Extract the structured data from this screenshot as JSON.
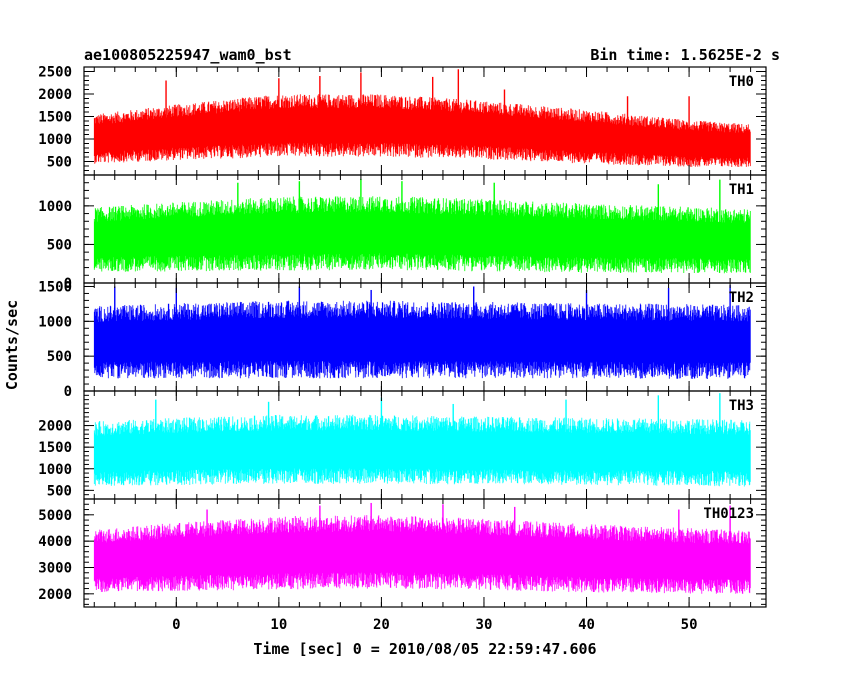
{
  "chart_data": {
    "type": "line",
    "title_left": "ae100805225947_wam0_bst",
    "title_right": "Bin time: 1.5625E-2 s",
    "xlabel": "Time [sec] 0 = 2010/08/05 22:59:47.606",
    "ylabel": "Counts/sec",
    "xlim": [
      -9,
      57.5
    ],
    "data_x_range": [
      -8,
      56
    ],
    "x_ticks": [
      0,
      10,
      20,
      30,
      40,
      50
    ],
    "x_tick_labels": [
      "0",
      "10",
      "20",
      "30",
      "40",
      "50"
    ],
    "x_minor_step": 2,
    "grid": false,
    "panels": [
      {
        "name": "TH0",
        "color": "#ff0000",
        "ylim": [
          200,
          2600
        ],
        "y_ticks": [
          500,
          1000,
          1500,
          2000,
          2500
        ],
        "y_tick_labels": [
          "500",
          "1000",
          "1500",
          "2000",
          "2500"
        ],
        "envelope": {
          "x": [
            -8,
            0,
            10,
            20,
            30,
            40,
            50,
            56
          ],
          "mean": [
            1000,
            1150,
            1300,
            1300,
            1200,
            1050,
            900,
            850
          ],
          "half_range": [
            550,
            620,
            700,
            700,
            650,
            600,
            520,
            480
          ]
        },
        "spikes": [
          [
            -1,
            2300
          ],
          [
            10,
            2350
          ],
          [
            14,
            2400
          ],
          [
            18,
            2480
          ],
          [
            25,
            2380
          ],
          [
            27.5,
            2550
          ],
          [
            32,
            2100
          ],
          [
            44,
            1950
          ],
          [
            50,
            1950
          ]
        ]
      },
      {
        "name": "TH1",
        "color": "#00ff00",
        "ylim": [
          0,
          1400
        ],
        "y_ticks": [
          0,
          500,
          1000
        ],
        "y_tick_labels": [
          "0",
          "500",
          "1000"
        ],
        "envelope": {
          "x": [
            -8,
            0,
            10,
            20,
            30,
            40,
            50,
            56
          ],
          "mean": [
            560,
            600,
            640,
            650,
            620,
            580,
            560,
            540
          ],
          "half_range": [
            420,
            450,
            480,
            480,
            470,
            450,
            430,
            420
          ]
        },
        "spikes": [
          [
            6,
            1300
          ],
          [
            12,
            1320
          ],
          [
            18,
            1350
          ],
          [
            22,
            1320
          ],
          [
            31,
            1300
          ],
          [
            47,
            1280
          ],
          [
            53,
            1340
          ]
        ]
      },
      {
        "name": "TH2",
        "color": "#0000ff",
        "ylim": [
          0,
          1550
        ],
        "y_ticks": [
          0,
          500,
          1000,
          1500
        ],
        "y_tick_labels": [
          "0",
          "500",
          "1000",
          "1500"
        ],
        "envelope": {
          "x": [
            -8,
            0,
            10,
            20,
            30,
            40,
            50,
            56
          ],
          "mean": [
            700,
            720,
            740,
            740,
            730,
            720,
            710,
            700
          ],
          "half_range": [
            520,
            540,
            560,
            560,
            550,
            540,
            540,
            530
          ]
        },
        "spikes": [
          [
            -6,
            1500
          ],
          [
            0,
            1480
          ],
          [
            12,
            1500
          ],
          [
            19,
            1450
          ],
          [
            29,
            1500
          ],
          [
            40,
            1450
          ],
          [
            48,
            1480
          ],
          [
            54,
            1520
          ]
        ]
      },
      {
        "name": "TH3",
        "color": "#00ffff",
        "ylim": [
          300,
          2800
        ],
        "y_ticks": [
          500,
          1000,
          1500,
          2000
        ],
        "y_tick_labels": [
          "500",
          "1000",
          "1500",
          "2000"
        ],
        "envelope": {
          "x": [
            -8,
            0,
            10,
            20,
            30,
            40,
            50,
            56
          ],
          "mean": [
            1350,
            1400,
            1450,
            1450,
            1420,
            1400,
            1380,
            1350
          ],
          "half_range": [
            750,
            780,
            800,
            800,
            790,
            780,
            780,
            770
          ]
        },
        "spikes": [
          [
            -2,
            2600
          ],
          [
            9,
            2550
          ],
          [
            20,
            2650
          ],
          [
            27,
            2500
          ],
          [
            38,
            2600
          ],
          [
            47,
            2700
          ],
          [
            53,
            2750
          ]
        ]
      },
      {
        "name": "TH0123",
        "color": "#ff00ff",
        "ylim": [
          1500,
          5600
        ],
        "y_ticks": [
          2000,
          3000,
          4000,
          5000
        ],
        "y_tick_labels": [
          "2000",
          "3000",
          "4000",
          "5000"
        ],
        "envelope": {
          "x": [
            -8,
            0,
            10,
            20,
            30,
            40,
            50,
            56
          ],
          "mean": [
            3250,
            3400,
            3550,
            3600,
            3500,
            3350,
            3250,
            3200
          ],
          "half_range": [
            1200,
            1300,
            1400,
            1400,
            1350,
            1300,
            1250,
            1200
          ]
        },
        "spikes": [
          [
            3,
            5200
          ],
          [
            14,
            5350
          ],
          [
            19,
            5450
          ],
          [
            26,
            5400
          ],
          [
            33,
            5300
          ],
          [
            49,
            5200
          ],
          [
            54,
            5350
          ]
        ]
      }
    ]
  }
}
